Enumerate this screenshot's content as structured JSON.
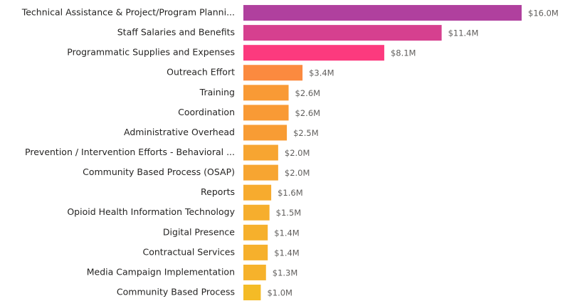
{
  "chart_data": {
    "type": "hbar",
    "categories": [
      "Technical Assistance & Project/Program Planni...",
      "Staff Salaries and Benefits",
      "Programmatic Supplies and Expenses",
      "Outreach Effort",
      "Training",
      "Coordination",
      "Administrative Overhead",
      "Prevention / Intervention Efforts - Behavioral ...",
      "Community Based Process (OSAP)",
      "Reports",
      "Opioid Health Information Technology",
      "Digital Presence",
      "Contractual Services",
      "Media Campaign Implementation",
      "Community Based Process"
    ],
    "values": [
      16.0,
      11.4,
      8.1,
      3.4,
      2.6,
      2.6,
      2.5,
      2.0,
      2.0,
      1.6,
      1.5,
      1.4,
      1.4,
      1.3,
      1.0
    ],
    "value_labels": [
      "$16.0M",
      "$11.4M",
      "$8.1M",
      "$3.4M",
      "$2.6M",
      "$2.6M",
      "$2.5M",
      "$2.0M",
      "$2.0M",
      "$1.6M",
      "$1.5M",
      "$1.4M",
      "$1.4M",
      "$1.3M",
      "$1.0M"
    ],
    "colors": [
      "#b0409e",
      "#d6408f",
      "#fc3a7e",
      "#fb8a3f",
      "#f99a35",
      "#f99a35",
      "#f89c34",
      "#f7a531",
      "#f7a531",
      "#f7ab2e",
      "#f6ae2d",
      "#f6b02c",
      "#f6b02c",
      "#f6b22b",
      "#f4bb26"
    ]
  }
}
